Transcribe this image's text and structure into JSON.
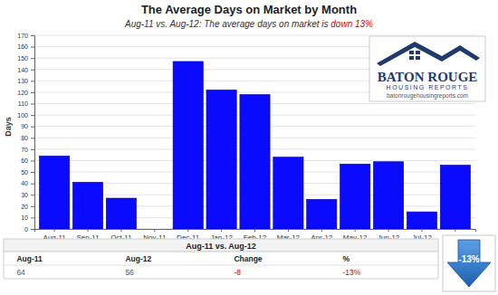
{
  "chart_data": {
    "type": "bar",
    "title": "The Average Days on Market by Month",
    "subtitle": [
      {
        "text": "Aug-11 vs. Aug-12: The average days on market is "
      },
      {
        "text": "down 13%",
        "color": "#cc0000"
      }
    ],
    "y_label": "Days",
    "categories": [
      "Aug-11",
      "Sep-11",
      "Oct-11",
      "Nov-11",
      "Dec-11",
      "Jan-12",
      "Feb-12",
      "Mar-12",
      "Apr-12",
      "May-12",
      "Jun-12",
      "Jul-12",
      "Aug-12"
    ],
    "values": [
      64,
      41,
      27,
      0,
      147,
      122,
      118,
      63,
      26,
      57,
      59,
      15,
      56
    ],
    "color": "#0a0aff",
    "ylim": [
      0,
      170
    ],
    "yticks": [
      0,
      10,
      20,
      30,
      40,
      50,
      60,
      70,
      80,
      90,
      100,
      110,
      120,
      130,
      140,
      150,
      160,
      170
    ],
    "grid": true
  },
  "logo": {
    "title": "BATON ROUGE",
    "subtitle": "HOUSING REPORTS",
    "url": "batonrougehousingreports.com"
  },
  "summary_table": {
    "title": "Aug-11 vs. Aug-12",
    "header": [
      "Aug-11",
      "Aug-12",
      "Change",
      "%"
    ],
    "values": [
      64,
      56,
      -8,
      {
        "value": -13,
        "label": "-13%"
      }
    ],
    "arrow": {
      "value": -13,
      "label": "-13%"
    }
  }
}
